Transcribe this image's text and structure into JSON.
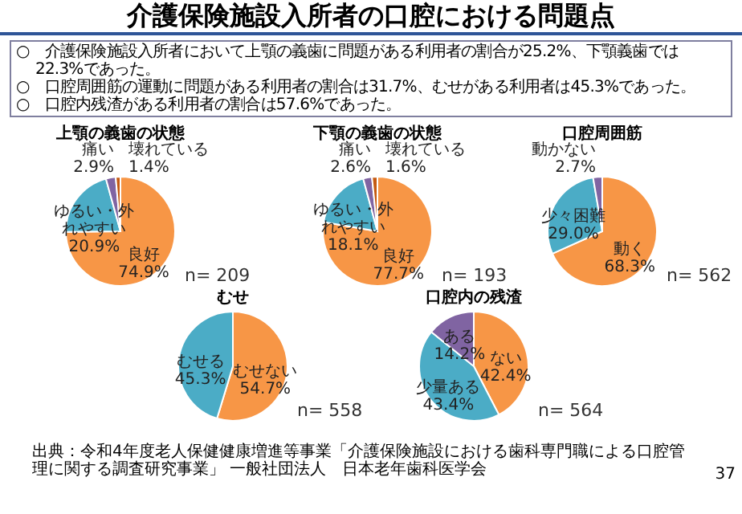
{
  "chart_data": [
    {
      "type": "other",
      "title": "介護保険施設入所者の口腔における問題点",
      "annotations": [
        "○　介護保険施設入所者において上顎の義歯に問題がある利用者の割合が25.2%、下顎義歯では22.3%であった。",
        "○　口腔周囲筋の運動に問題がある利用者の割合は31.7%、むせがある利用者は45.3%であった。",
        "○　口腔内残渣がある利用者の割合は57.6%であった。",
        "出典：令和4年度老人保健健康増進等事業「介護保険施設における歯科専門職による口腔管理に関する調査研究事業」 一般社団法人　日本老年歯科医学会",
        "37"
      ]
    },
    {
      "type": "pie",
      "title": "上顎の義歯の状態",
      "categories": [
        "良好",
        "ゆるい・外れやすい",
        "痛い",
        "壊れている"
      ],
      "values": [
        74.9,
        20.9,
        2.9,
        1.4
      ],
      "value_labels": [
        "74.9%",
        "20.9%",
        "2.9%",
        "1.4%"
      ],
      "colors": [
        "#f79646",
        "#4bacc6",
        "#8064a2",
        "#c55a11"
      ],
      "annotations": [
        "n= 209"
      ]
    },
    {
      "type": "pie",
      "title": "下顎の義歯の状態",
      "categories": [
        "良好",
        "ゆるい・外れやすい",
        "痛い",
        "壊れている"
      ],
      "values": [
        77.7,
        18.1,
        2.6,
        1.6
      ],
      "value_labels": [
        "77.7%",
        "18.1%",
        "2.6%",
        "1.6%"
      ],
      "colors": [
        "#f79646",
        "#4bacc6",
        "#8064a2",
        "#c55a11"
      ],
      "annotations": [
        "n= 193"
      ]
    },
    {
      "type": "pie",
      "title": "口腔周囲筋",
      "categories": [
        "動く",
        "少々困難",
        "動かない"
      ],
      "values": [
        68.3,
        29.0,
        2.7
      ],
      "value_labels": [
        "68.3%",
        "29.0%",
        "2.7%"
      ],
      "colors": [
        "#f79646",
        "#4bacc6",
        "#8064a2"
      ],
      "annotations": [
        "n= 562"
      ]
    },
    {
      "type": "pie",
      "title": "むせ",
      "categories": [
        "むせない",
        "むせる"
      ],
      "values": [
        54.7,
        45.3
      ],
      "value_labels": [
        "54.7%",
        "45.3%"
      ],
      "colors": [
        "#f79646",
        "#4bacc6"
      ],
      "annotations": [
        "n= 558"
      ]
    },
    {
      "type": "pie",
      "title": "口腔内の残渣",
      "categories": [
        "ない",
        "少量ある",
        "ある"
      ],
      "values": [
        42.4,
        43.4,
        14.2
      ],
      "value_labels": [
        "42.4%",
        "43.4%",
        "14.2%"
      ],
      "colors": [
        "#f79646",
        "#4bacc6",
        "#8064a2"
      ],
      "annotations": [
        "n= 564"
      ]
    }
  ]
}
